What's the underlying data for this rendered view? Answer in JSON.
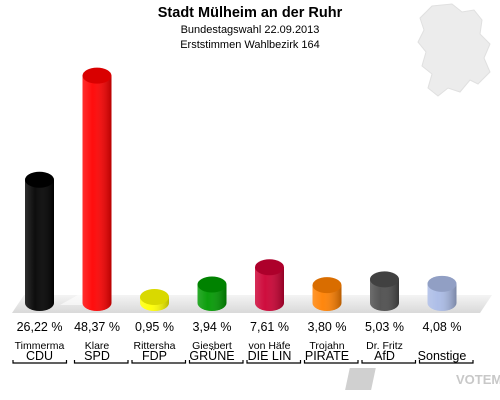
{
  "header": {
    "title": "Stadt Mülheim an der Ruhr",
    "subtitle1": "Bundestagswahl 22.09.2013",
    "subtitle2": "Erststimmen Wahlbezirk 164"
  },
  "logo": {
    "text": "VOTEMANAGER"
  },
  "chart_data": {
    "type": "bar",
    "categories": [
      "CDU",
      "SPD",
      "FDP",
      "GRÜNE",
      "DIE LIN",
      "PIRATE",
      "AfD",
      "Sonstige"
    ],
    "candidates": [
      "Timmerma",
      "Klare",
      "Rittersha",
      "Giesbert",
      "von Häfe",
      "Trojahn",
      "Dr. Fritz",
      ""
    ],
    "values": [
      26.22,
      48.37,
      0.95,
      3.94,
      7.61,
      3.8,
      5.03,
      4.08
    ],
    "value_labels": [
      "26,22 %",
      "48,37 %",
      "0,95 %",
      "3,94 %",
      "7,61 %",
      "3,80 %",
      "5,03 %",
      "4,08 %"
    ],
    "colors": [
      "#000000",
      "#ff0000",
      "#ffff00",
      "#009900",
      "#cc0033",
      "#ff8000",
      "#4d4d4d",
      "#aabbe6"
    ],
    "ylim": [
      0,
      50
    ],
    "grid": false,
    "legend": "none"
  }
}
